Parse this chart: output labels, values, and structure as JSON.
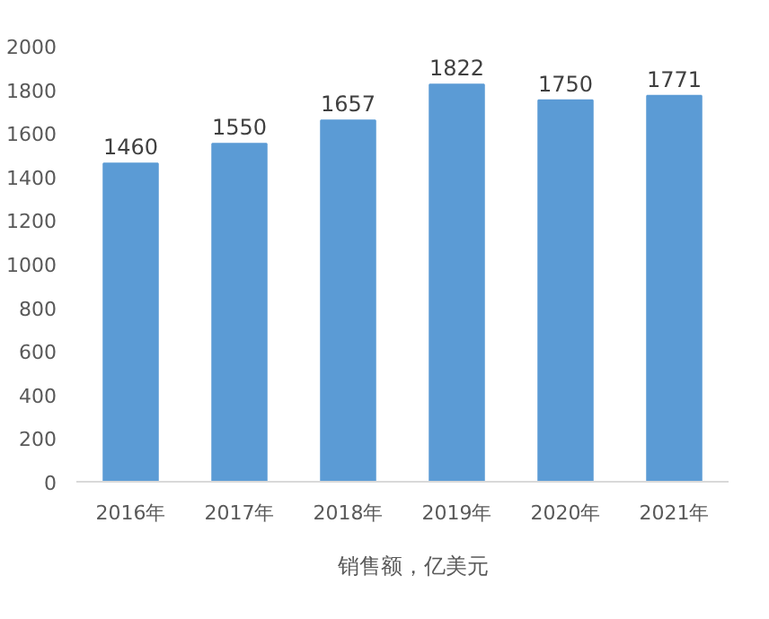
{
  "chart_data": {
    "type": "bar",
    "categories": [
      "2016年",
      "2017年",
      "2018年",
      "2019年",
      "2020年",
      "2021年"
    ],
    "series": [
      {
        "name": "销售额，亿美元",
        "color": "#5b9bd5",
        "values": [
          1460,
          1550,
          1657,
          1822,
          1750,
          1771
        ]
      }
    ],
    "ylim": [
      0,
      2000
    ],
    "yticks": [
      0,
      200,
      400,
      600,
      800,
      1000,
      1200,
      1400,
      1600,
      1800,
      2000
    ],
    "grid": false,
    "legend": "bottom",
    "data_labels": true
  }
}
